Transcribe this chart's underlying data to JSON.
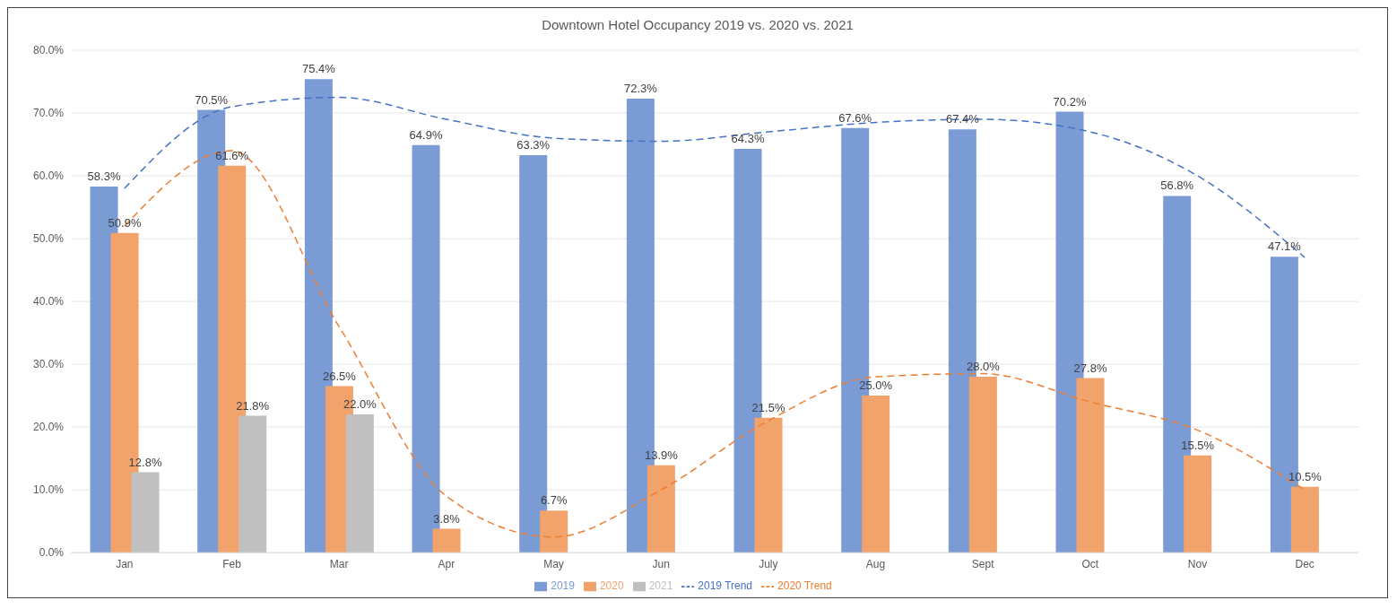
{
  "chart_data": {
    "type": "bar",
    "title": "Downtown Hotel Occupancy 2019 vs. 2020 vs. 2021",
    "categories": [
      "Jan",
      "Feb",
      "Mar",
      "Apr",
      "May",
      "Jun",
      "July",
      "Aug",
      "Sept",
      "Oct",
      "Nov",
      "Dec"
    ],
    "series": [
      {
        "name": "2019",
        "color": "#7b9bd5",
        "values": [
          58.3,
          70.5,
          75.4,
          64.9,
          63.3,
          72.3,
          64.3,
          67.6,
          67.4,
          70.2,
          56.8,
          47.1
        ],
        "value_labels": [
          "58.3%",
          "70.5%",
          "75.4%",
          "64.9%",
          "63.3%",
          "72.3%",
          "64.3%",
          "67.6%",
          "67.4%",
          "70.2%",
          "56.8%",
          "47.1%"
        ]
      },
      {
        "name": "2020",
        "color": "#f1a36b",
        "values": [
          50.9,
          61.6,
          26.5,
          3.8,
          6.7,
          13.9,
          21.5,
          25.0,
          28.0,
          27.8,
          15.5,
          10.5
        ],
        "value_labels": [
          "50.9%",
          "61.6%",
          "26.5%",
          "3.8%",
          "6.7%",
          "13.9%",
          "21.5%",
          "25.0%",
          "28.0%",
          "27.8%",
          "15.5%",
          "10.5%"
        ]
      },
      {
        "name": "2021",
        "color": "#c0c0c0",
        "values": [
          12.8,
          21.8,
          22.0,
          null,
          null,
          null,
          null,
          null,
          null,
          null,
          null,
          null
        ],
        "value_labels": [
          "12.8%",
          "21.8%",
          "22.0%",
          null,
          null,
          null,
          null,
          null,
          null,
          null,
          null,
          null
        ]
      },
      {
        "name": "2019 Trend",
        "type": "line",
        "color": "#4472c4",
        "line_style": "dashed",
        "values": [
          58,
          71,
          72.5,
          69,
          66,
          65.5,
          67,
          68.5,
          69,
          67,
          60,
          47
        ]
      },
      {
        "name": "2020 Trend",
        "type": "line",
        "color": "#ed7d31",
        "line_style": "dashed",
        "values": [
          52,
          64,
          36,
          9,
          2.5,
          10,
          21,
          28,
          28.5,
          24,
          19.5,
          10
        ]
      }
    ],
    "ylim": [
      0,
      80
    ],
    "yticks": [
      {
        "value": 0,
        "label": "0.0%"
      },
      {
        "value": 10,
        "label": "10.0%"
      },
      {
        "value": 20,
        "label": "20.0%"
      },
      {
        "value": 30,
        "label": "30.0%"
      },
      {
        "value": 40,
        "label": "40.0%"
      },
      {
        "value": 50,
        "label": "50.0%"
      },
      {
        "value": 60,
        "label": "60.0%"
      },
      {
        "value": 70,
        "label": "70.0%"
      },
      {
        "value": 80,
        "label": "80.0%"
      }
    ],
    "grid": "y",
    "legend": "bottom",
    "marker": "none"
  }
}
